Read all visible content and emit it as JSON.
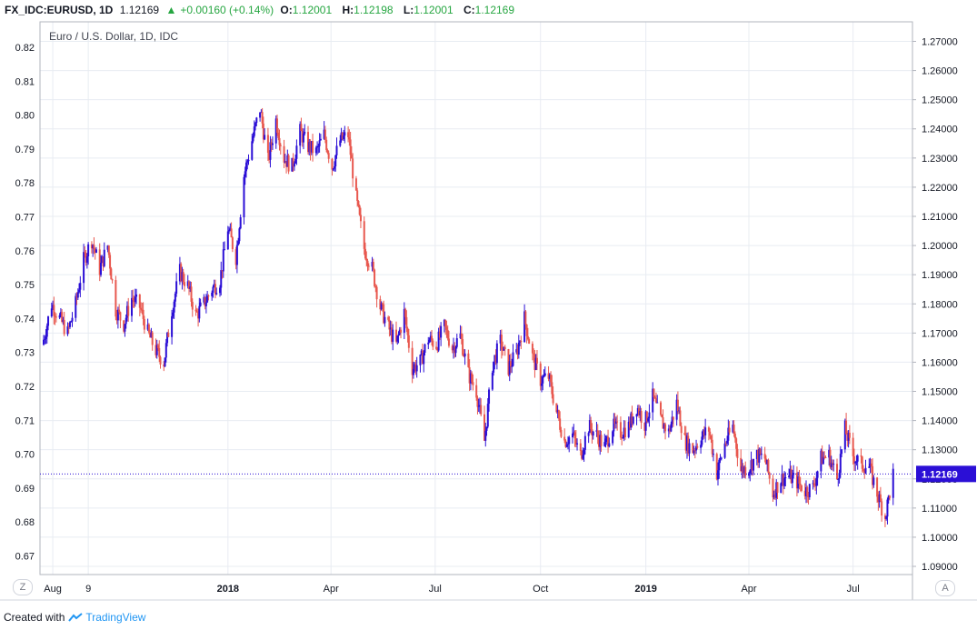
{
  "header": {
    "symbol": "FX_IDC:EURUSD, 1D",
    "last": "1.12169",
    "change_arrow": "▲",
    "change": "+0.00160 (+0.14%)",
    "open_label": "O:",
    "open": "1.12001",
    "high_label": "H:",
    "high": "1.12198",
    "low_label": "L:",
    "low": "1.12001",
    "close_label": "C:",
    "close": "1.12169"
  },
  "subtitle": "Euro / U.S. Dollar, 1D, IDC",
  "footer": {
    "created_with": "Created with",
    "brand": "TradingView"
  },
  "corner_left": "Z",
  "corner_right": "A",
  "colors": {
    "up": "#2b0fd6",
    "down": "#e8584f",
    "price_tag": "#2b0fd6",
    "grid": "#e8ecf2"
  },
  "chart_data": {
    "type": "candlestick",
    "title": "Euro / U.S. Dollar, 1D, IDC",
    "left_axis": {
      "ticks": [
        0.82,
        0.81,
        0.8,
        0.79,
        0.78,
        0.77,
        0.76,
        0.75,
        0.74,
        0.73,
        0.72,
        0.71,
        0.7,
        0.69,
        0.68,
        0.67
      ],
      "tick_labels": [
        "0.82",
        "0.81",
        "0.80",
        "0.79",
        "0.78",
        "0.77",
        "0.76",
        "0.75",
        "0.74",
        "0.73",
        "0.72",
        "0.71",
        "0.70",
        "0.69",
        "0.68",
        "0.67"
      ]
    },
    "right_axis": {
      "ticks": [
        1.27,
        1.26,
        1.25,
        1.24,
        1.23,
        1.22,
        1.21,
        1.2,
        1.19,
        1.18,
        1.17,
        1.16,
        1.15,
        1.14,
        1.13,
        1.12,
        1.11,
        1.1,
        1.09
      ],
      "tick_labels": [
        "1.27000",
        "1.26000",
        "1.25000",
        "1.24000",
        "1.23000",
        "1.22000",
        "1.21000",
        "1.20000",
        "1.19000",
        "1.18000",
        "1.17000",
        "1.16000",
        "1.15000",
        "1.14000",
        "1.13000",
        "1.12000",
        "1.11000",
        "1.10000",
        "1.09000"
      ],
      "range": [
        1.0872,
        1.2767
      ]
    },
    "x_axis": {
      "labels": [
        {
          "label": "Aug",
          "date": "2017-08-01",
          "bold": false
        },
        {
          "label": "9",
          "date": "2017-09-01",
          "bold": false
        },
        {
          "label": "2018",
          "date": "2018-01-01",
          "bold": true
        },
        {
          "label": "Apr",
          "date": "2018-04-01",
          "bold": false
        },
        {
          "label": "Jul",
          "date": "2018-07-01",
          "bold": false
        },
        {
          "label": "Oct",
          "date": "2018-10-01",
          "bold": false
        },
        {
          "label": "2019",
          "date": "2019-01-01",
          "bold": true
        },
        {
          "label": "Apr",
          "date": "2019-04-01",
          "bold": false
        },
        {
          "label": "Jul",
          "date": "2019-07-01",
          "bold": false
        }
      ]
    },
    "last_price": {
      "value": 1.12169,
      "label": "1.12169"
    },
    "close_series": [
      {
        "date": "2017-07-24",
        "close": 1.166
      },
      {
        "date": "2017-08-01",
        "close": 1.18
      },
      {
        "date": "2017-08-08",
        "close": 1.175
      },
      {
        "date": "2017-08-15",
        "close": 1.17
      },
      {
        "date": "2017-08-22",
        "close": 1.18
      },
      {
        "date": "2017-08-29",
        "close": 1.195
      },
      {
        "date": "2017-09-05",
        "close": 1.202
      },
      {
        "date": "2017-09-12",
        "close": 1.192
      },
      {
        "date": "2017-09-19",
        "close": 1.2
      },
      {
        "date": "2017-09-26",
        "close": 1.178
      },
      {
        "date": "2017-10-03",
        "close": 1.173
      },
      {
        "date": "2017-10-10",
        "close": 1.182
      },
      {
        "date": "2017-10-17",
        "close": 1.179
      },
      {
        "date": "2017-10-24",
        "close": 1.17
      },
      {
        "date": "2017-10-31",
        "close": 1.164
      },
      {
        "date": "2017-11-07",
        "close": 1.16
      },
      {
        "date": "2017-11-14",
        "close": 1.178
      },
      {
        "date": "2017-11-21",
        "close": 1.191
      },
      {
        "date": "2017-11-28",
        "close": 1.186
      },
      {
        "date": "2017-12-05",
        "close": 1.176
      },
      {
        "date": "2017-12-12",
        "close": 1.18
      },
      {
        "date": "2017-12-19",
        "close": 1.185
      },
      {
        "date": "2017-12-26",
        "close": 1.188
      },
      {
        "date": "2018-01-02",
        "close": 1.206
      },
      {
        "date": "2018-01-09",
        "close": 1.196
      },
      {
        "date": "2018-01-16",
        "close": 1.224
      },
      {
        "date": "2018-01-23",
        "close": 1.236
      },
      {
        "date": "2018-01-30",
        "close": 1.247
      },
      {
        "date": "2018-02-06",
        "close": 1.229
      },
      {
        "date": "2018-02-13",
        "close": 1.243
      },
      {
        "date": "2018-02-20",
        "close": 1.23
      },
      {
        "date": "2018-02-27",
        "close": 1.227
      },
      {
        "date": "2018-03-06",
        "close": 1.239
      },
      {
        "date": "2018-03-13",
        "close": 1.234
      },
      {
        "date": "2018-03-20",
        "close": 1.232
      },
      {
        "date": "2018-03-27",
        "close": 1.238
      },
      {
        "date": "2018-04-03",
        "close": 1.227
      },
      {
        "date": "2018-04-10",
        "close": 1.236
      },
      {
        "date": "2018-04-17",
        "close": 1.238
      },
      {
        "date": "2018-04-24",
        "close": 1.216
      },
      {
        "date": "2018-05-01",
        "close": 1.199
      },
      {
        "date": "2018-05-08",
        "close": 1.192
      },
      {
        "date": "2018-05-15",
        "close": 1.179
      },
      {
        "date": "2018-05-22",
        "close": 1.172
      },
      {
        "date": "2018-05-29",
        "close": 1.166
      },
      {
        "date": "2018-06-05",
        "close": 1.177
      },
      {
        "date": "2018-06-12",
        "close": 1.158
      },
      {
        "date": "2018-06-19",
        "close": 1.16
      },
      {
        "date": "2018-06-26",
        "close": 1.168
      },
      {
        "date": "2018-07-03",
        "close": 1.166
      },
      {
        "date": "2018-07-10",
        "close": 1.172
      },
      {
        "date": "2018-07-17",
        "close": 1.165
      },
      {
        "date": "2018-07-24",
        "close": 1.169
      },
      {
        "date": "2018-07-31",
        "close": 1.156
      },
      {
        "date": "2018-08-07",
        "close": 1.15
      },
      {
        "date": "2018-08-14",
        "close": 1.133
      },
      {
        "date": "2018-08-21",
        "close": 1.159
      },
      {
        "date": "2018-08-28",
        "close": 1.167
      },
      {
        "date": "2018-09-04",
        "close": 1.158
      },
      {
        "date": "2018-09-11",
        "close": 1.163
      },
      {
        "date": "2018-09-18",
        "close": 1.175
      },
      {
        "date": "2018-09-25",
        "close": 1.162
      },
      {
        "date": "2018-10-02",
        "close": 1.154
      },
      {
        "date": "2018-10-09",
        "close": 1.155
      },
      {
        "date": "2018-10-16",
        "close": 1.143
      },
      {
        "date": "2018-10-23",
        "close": 1.133
      },
      {
        "date": "2018-10-30",
        "close": 1.135
      },
      {
        "date": "2018-11-06",
        "close": 1.128
      },
      {
        "date": "2018-11-13",
        "close": 1.138
      },
      {
        "date": "2018-11-20",
        "close": 1.135
      },
      {
        "date": "2018-11-27",
        "close": 1.131
      },
      {
        "date": "2018-12-04",
        "close": 1.138
      },
      {
        "date": "2018-12-11",
        "close": 1.136
      },
      {
        "date": "2018-12-18",
        "close": 1.138
      },
      {
        "date": "2018-12-25",
        "close": 1.145
      },
      {
        "date": "2019-01-01",
        "close": 1.139
      },
      {
        "date": "2019-01-08",
        "close": 1.148
      },
      {
        "date": "2019-01-15",
        "close": 1.14
      },
      {
        "date": "2019-01-22",
        "close": 1.136
      },
      {
        "date": "2019-01-29",
        "close": 1.146
      },
      {
        "date": "2019-02-05",
        "close": 1.133
      },
      {
        "date": "2019-02-12",
        "close": 1.13
      },
      {
        "date": "2019-02-19",
        "close": 1.134
      },
      {
        "date": "2019-02-26",
        "close": 1.137
      },
      {
        "date": "2019-03-05",
        "close": 1.122
      },
      {
        "date": "2019-03-12",
        "close": 1.132
      },
      {
        "date": "2019-03-19",
        "close": 1.138
      },
      {
        "date": "2019-03-26",
        "close": 1.123
      },
      {
        "date": "2019-04-02",
        "close": 1.124
      },
      {
        "date": "2019-04-09",
        "close": 1.128
      },
      {
        "date": "2019-04-16",
        "close": 1.127
      },
      {
        "date": "2019-04-23",
        "close": 1.115
      },
      {
        "date": "2019-04-30",
        "close": 1.12
      },
      {
        "date": "2019-05-07",
        "close": 1.121
      },
      {
        "date": "2019-05-14",
        "close": 1.119
      },
      {
        "date": "2019-05-21",
        "close": 1.116
      },
      {
        "date": "2019-05-28",
        "close": 1.117
      },
      {
        "date": "2019-06-04",
        "close": 1.127
      },
      {
        "date": "2019-06-11",
        "close": 1.128
      },
      {
        "date": "2019-06-18",
        "close": 1.12
      },
      {
        "date": "2019-06-25",
        "close": 1.137
      },
      {
        "date": "2019-07-02",
        "close": 1.128
      },
      {
        "date": "2019-07-09",
        "close": 1.125
      },
      {
        "date": "2019-07-16",
        "close": 1.124
      },
      {
        "date": "2019-07-23",
        "close": 1.115
      },
      {
        "date": "2019-07-30",
        "close": 1.107
      },
      {
        "date": "2019-08-06",
        "close": 1.1217
      }
    ]
  }
}
